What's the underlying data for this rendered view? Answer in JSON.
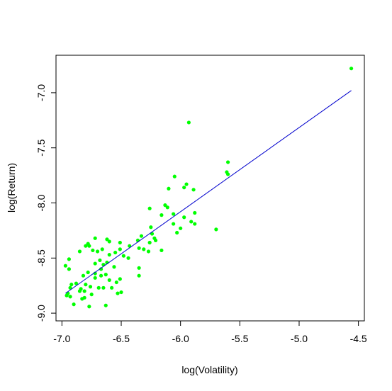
{
  "chart_data": {
    "type": "scatter",
    "title": "",
    "xlabel": "log(Volatility)",
    "ylabel": "log(Return)",
    "xlim": [
      -7.05,
      -4.45
    ],
    "ylim": [
      -9.07,
      -6.66
    ],
    "x_ticks": [
      -7.0,
      -6.5,
      -6.0,
      -5.5,
      -5.0,
      -4.5
    ],
    "x_tick_labels": [
      "-7.0",
      "-6.5",
      "-6.0",
      "-5.5",
      "-5.0",
      "-4.5"
    ],
    "y_ticks": [
      -9.0,
      -8.5,
      -8.0,
      -7.5,
      -7.0
    ],
    "y_tick_labels": [
      "-9.0",
      "-8.5",
      "-8.0",
      "-7.5",
      "-7.0"
    ],
    "grid": false,
    "point_color": "#00ff00",
    "fit_line_color": "#0000cd",
    "series": [
      {
        "type": "scatter",
        "points": [
          [
            -4.56,
            -6.78
          ],
          [
            -5.93,
            -7.27
          ],
          [
            -5.6,
            -7.63
          ],
          [
            -5.61,
            -7.72
          ],
          [
            -5.6,
            -7.74
          ],
          [
            -6.05,
            -7.76
          ],
          [
            -5.95,
            -7.83
          ],
          [
            -5.97,
            -7.86
          ],
          [
            -6.1,
            -7.87
          ],
          [
            -5.89,
            -7.88
          ],
          [
            -6.13,
            -8.02
          ],
          [
            -6.11,
            -8.04
          ],
          [
            -6.26,
            -8.05
          ],
          [
            -6.06,
            -8.1
          ],
          [
            -6.16,
            -8.11
          ],
          [
            -5.88,
            -8.09
          ],
          [
            -5.97,
            -8.13
          ],
          [
            -6.06,
            -8.19
          ],
          [
            -5.91,
            -8.17
          ],
          [
            -5.88,
            -8.19
          ],
          [
            -6.25,
            -8.22
          ],
          [
            -6.0,
            -8.23
          ],
          [
            -5.7,
            -8.24
          ],
          [
            -6.03,
            -8.27
          ],
          [
            -6.24,
            -8.28
          ],
          [
            -6.33,
            -8.3
          ],
          [
            -6.21,
            -8.34
          ],
          [
            -6.26,
            -8.36
          ],
          [
            -6.22,
            -8.32
          ],
          [
            -6.36,
            -8.34
          ],
          [
            -6.16,
            -8.43
          ],
          [
            -6.31,
            -8.42
          ],
          [
            -6.27,
            -8.44
          ],
          [
            -6.35,
            -8.41
          ],
          [
            -6.43,
            -8.39
          ],
          [
            -6.51,
            -8.36
          ],
          [
            -6.6,
            -8.35
          ],
          [
            -6.62,
            -8.33
          ],
          [
            -6.78,
            -8.37
          ],
          [
            -6.72,
            -8.32
          ],
          [
            -6.77,
            -8.39
          ],
          [
            -6.85,
            -8.44
          ],
          [
            -6.8,
            -8.39
          ],
          [
            -6.51,
            -8.42
          ],
          [
            -6.55,
            -8.45
          ],
          [
            -6.66,
            -8.42
          ],
          [
            -6.7,
            -8.44
          ],
          [
            -6.74,
            -8.43
          ],
          [
            -6.6,
            -8.47
          ],
          [
            -6.48,
            -8.48
          ],
          [
            -6.68,
            -8.52
          ],
          [
            -6.72,
            -8.55
          ],
          [
            -6.62,
            -8.54
          ],
          [
            -6.56,
            -8.58
          ],
          [
            -6.65,
            -8.56
          ],
          [
            -6.44,
            -8.5
          ],
          [
            -6.94,
            -8.51
          ],
          [
            -6.97,
            -8.57
          ],
          [
            -6.94,
            -8.6
          ],
          [
            -6.35,
            -8.59
          ],
          [
            -6.67,
            -8.6
          ],
          [
            -6.72,
            -8.64
          ],
          [
            -6.78,
            -8.63
          ],
          [
            -6.63,
            -8.65
          ],
          [
            -6.67,
            -8.66
          ],
          [
            -6.82,
            -8.66
          ],
          [
            -6.35,
            -8.66
          ],
          [
            -6.6,
            -8.7
          ],
          [
            -6.72,
            -8.68
          ],
          [
            -6.54,
            -8.72
          ],
          [
            -6.51,
            -8.69
          ],
          [
            -6.88,
            -8.73
          ],
          [
            -6.92,
            -8.74
          ],
          [
            -6.8,
            -8.74
          ],
          [
            -6.76,
            -8.76
          ],
          [
            -6.69,
            -8.77
          ],
          [
            -6.65,
            -8.77
          ],
          [
            -6.58,
            -8.77
          ],
          [
            -6.93,
            -8.77
          ],
          [
            -6.84,
            -8.78
          ],
          [
            -6.85,
            -8.8
          ],
          [
            -6.81,
            -8.8
          ],
          [
            -6.95,
            -8.82
          ],
          [
            -6.96,
            -8.84
          ],
          [
            -6.93,
            -8.85
          ],
          [
            -6.75,
            -8.83
          ],
          [
            -6.5,
            -8.81
          ],
          [
            -6.53,
            -8.82
          ],
          [
            -6.81,
            -8.86
          ],
          [
            -6.83,
            -8.87
          ],
          [
            -6.9,
            -8.92
          ],
          [
            -6.63,
            -8.93
          ],
          [
            -6.77,
            -8.94
          ]
        ]
      },
      {
        "type": "line",
        "points": [
          [
            -6.97,
            -8.82
          ],
          [
            -4.56,
            -6.98
          ]
        ]
      }
    ]
  }
}
